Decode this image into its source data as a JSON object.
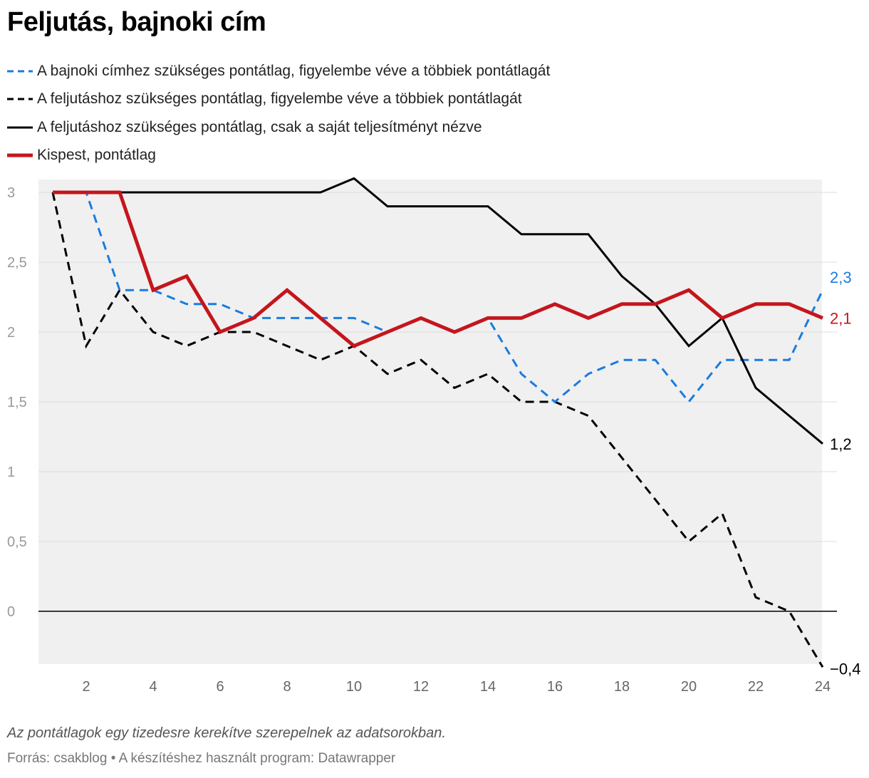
{
  "title": "Feljutás, bajnoki cím",
  "footnote": "Az pontátlagok egy tizedesre kerekítve szerepelnek az adatsorokban.",
  "source": "Forrás: csakblog • A készítéshez használt program: Datawrapper",
  "colors": {
    "blue": "#1a7be0",
    "black": "#000000",
    "red": "#c4161c",
    "area": "#f0f0f0",
    "grid": "#dddddd"
  },
  "chart_data": {
    "type": "line",
    "title": "Feljutás, bajnoki cím",
    "x": [
      1,
      2,
      3,
      4,
      5,
      6,
      7,
      8,
      9,
      10,
      11,
      12,
      13,
      14,
      15,
      16,
      17,
      18,
      19,
      20,
      21,
      22,
      23,
      24
    ],
    "ylim": [
      -0.4,
      3.1
    ],
    "yticks": [
      0,
      0.5,
      1,
      1.5,
      2,
      2.5,
      3
    ],
    "ytick_labels": [
      "0",
      "0,5",
      "1",
      "1,5",
      "2",
      "2,5",
      "3"
    ],
    "xticks": [
      2,
      4,
      6,
      8,
      10,
      12,
      14,
      16,
      18,
      20,
      22,
      24
    ],
    "xtick_labels": [
      "2",
      "4",
      "6",
      "8",
      "10",
      "12",
      "14",
      "16",
      "18",
      "20",
      "22",
      "24"
    ],
    "series": [
      {
        "name": "A bajnoki címhez szükséges pontátlag, figyelembe véve a többiek pontátlagát",
        "style": "dashed",
        "color": "#1a7be0",
        "values": [
          3,
          3,
          2.3,
          2.3,
          2.2,
          2.2,
          2.1,
          2.1,
          2.1,
          2.1,
          2.0,
          2.1,
          2.0,
          2.1,
          1.7,
          1.5,
          1.7,
          1.8,
          1.8,
          1.5,
          1.8,
          1.8,
          1.8,
          2.3
        ],
        "end_label": "2,3"
      },
      {
        "name": "A feljutáshoz szükséges pontátlag, figyelembe véve a többiek pontátlagát",
        "style": "dashed",
        "color": "#000000",
        "values": [
          3,
          1.9,
          2.3,
          2.0,
          1.9,
          2.0,
          2.0,
          1.9,
          1.8,
          1.9,
          1.7,
          1.8,
          1.6,
          1.7,
          1.5,
          1.5,
          1.4,
          1.1,
          0.8,
          0.5,
          0.7,
          0.1,
          0.0,
          -0.4
        ],
        "end_label": "−0,4"
      },
      {
        "name": "A feljutáshoz szükséges pontátlag, csak a saját teljesítményt nézve",
        "style": "solid",
        "color": "#000000",
        "values": [
          3,
          3,
          3,
          3,
          3,
          3,
          3,
          3,
          3,
          3.1,
          2.9,
          2.9,
          2.9,
          2.9,
          2.7,
          2.7,
          2.7,
          2.4,
          2.2,
          1.9,
          2.1,
          1.6,
          1.4,
          1.2
        ],
        "end_label": "1,2"
      },
      {
        "name": "Kispest, pontátlag",
        "style": "thick",
        "color": "#c4161c",
        "values": [
          3,
          3,
          3,
          2.3,
          2.4,
          2.0,
          2.1,
          2.3,
          2.1,
          1.9,
          2.0,
          2.1,
          2.0,
          2.1,
          2.1,
          2.2,
          2.1,
          2.2,
          2.2,
          2.3,
          2.1,
          2.2,
          2.2,
          2.1
        ],
        "end_label": "2,1"
      }
    ]
  }
}
